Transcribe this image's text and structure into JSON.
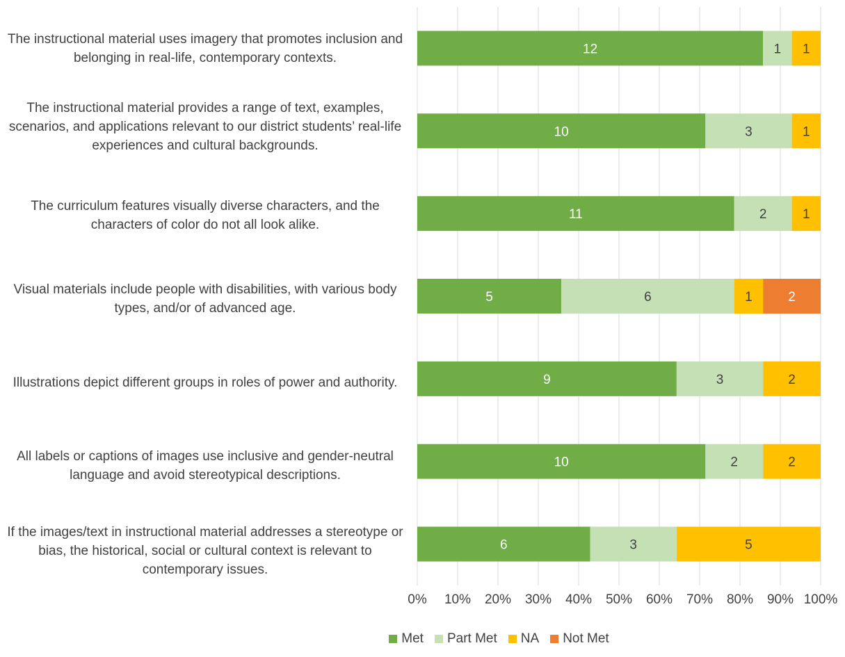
{
  "chart_data": {
    "type": "bar",
    "orientation": "horizontal",
    "stacked": "percent",
    "categories": [
      "The instructional material uses imagery that  promotes inclusion and belonging in real-life,  contemporary contexts.",
      "The instructional material provides a range of  text, examples, scenarios, and applications  relevant to our district students’ real-life  experiences and cultural backgrounds.",
      "The curriculum features visually diverse  characters, and the characters of color do not all  look alike.",
      "Visual materials include people with disabilities,  with various body types, and/or of advanced age.",
      "Illustrations depict different groups in roles of  power and authority.",
      "All labels or captions of images use inclusive and  gender-neutral language and avoid stereotypical  descriptions.",
      "If the images/text in instructional material  addresses a stereotype or bias, the historical,  social or cultural context is relevant to  contemporary issues."
    ],
    "series": [
      {
        "name": "Met",
        "color": "#70AD47",
        "values": [
          12,
          10,
          11,
          5,
          9,
          10,
          6
        ]
      },
      {
        "name": "Part Met",
        "color": "#C5E0B4",
        "values": [
          1,
          3,
          2,
          6,
          3,
          2,
          3
        ]
      },
      {
        "name": "NA",
        "color": "#FFC000",
        "values": [
          1,
          1,
          1,
          1,
          2,
          2,
          5
        ]
      },
      {
        "name": "Not Met",
        "color": "#ED7D31",
        "values": [
          0,
          0,
          0,
          2,
          0,
          0,
          0
        ]
      }
    ],
    "x_ticks": [
      "0%",
      "10%",
      "20%",
      "30%",
      "40%",
      "50%",
      "60%",
      "70%",
      "80%",
      "90%",
      "100%"
    ],
    "xlim": [
      0,
      100
    ],
    "grid": true,
    "legend_position": "bottom"
  },
  "labels": {
    "cat0": "The instructional material uses imagery that  promotes inclusion and belonging in real-life,  contemporary contexts.",
    "cat1": "The instructional material provides a range of  text, examples, scenarios, and applications  relevant to our district students’ real-life  experiences and cultural backgrounds.",
    "cat2": "The curriculum features visually diverse  characters, and the characters of color do not all  look alike.",
    "cat3": "Visual materials include people with disabilities,  with various body types, and/or of advanced age.",
    "cat4": "Illustrations depict different groups in roles of  power and authority.",
    "cat5": "All labels or captions of images use inclusive and  gender-neutral language and avoid stereotypical  descriptions.",
    "cat6": "If the images/text in instructional material  addresses a stereotype or bias, the historical,  social or cultural context is relevant to  contemporary issues."
  },
  "legend": {
    "met": "Met",
    "part_met": "Part Met",
    "na": "NA",
    "not_met": "Not Met"
  }
}
